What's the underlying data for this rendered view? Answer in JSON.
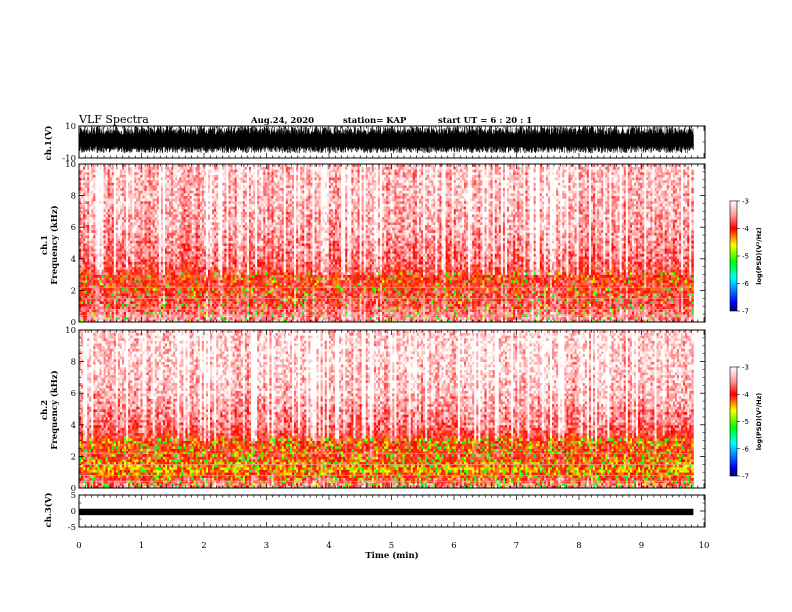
{
  "header": {
    "title": "VLF Spectra",
    "date": "Aug.24, 2020",
    "station": "station= KAP",
    "start": "start  UT =   6  : 20 : 1"
  },
  "chart_data": [
    {
      "type": "line",
      "panel": "ch1-waveform",
      "ylabel": "ch.1(V)",
      "ylim": [
        -10,
        10
      ],
      "yticks": [
        "10",
        "-10"
      ],
      "xlim": [
        0,
        10
      ],
      "x_end": 9.83,
      "envelope_upper_approx": 10,
      "envelope_lower_approx": -7,
      "color": "#000000"
    },
    {
      "type": "heatmap",
      "panel": "ch1-spectrogram",
      "ylabel": "ch.1\nFrequency (kHz)",
      "ylim": [
        0,
        10
      ],
      "yticks": [
        "0",
        "2",
        "4",
        "6",
        "8",
        "10"
      ],
      "xlim": [
        0,
        10
      ],
      "x_end": 9.83,
      "colorbar": {
        "label": "log(PSD)(V²/Hz)",
        "range": [
          -7,
          -3
        ],
        "ticks": [
          "-3",
          "-4",
          "-5",
          "-6",
          "-7"
        ],
        "colors": [
          "#ffffff",
          "#ff0000",
          "#ffff00",
          "#00ff00",
          "#00ffff",
          "#0000ff",
          "#000080"
        ]
      },
      "intensity_profile": [
        {
          "freq_khz": 0.3,
          "log_psd": -3.6
        },
        {
          "freq_khz": 1.0,
          "log_psd": -3.9
        },
        {
          "freq_khz": 2.0,
          "log_psd": -4.0
        },
        {
          "freq_khz": 3.0,
          "log_psd": -4.1
        },
        {
          "freq_khz": 4.0,
          "log_psd": -3.8
        },
        {
          "freq_khz": 6.0,
          "log_psd": -3.6
        },
        {
          "freq_khz": 8.0,
          "log_psd": -3.5
        },
        {
          "freq_khz": 10.0,
          "log_psd": -3.5
        }
      ]
    },
    {
      "type": "heatmap",
      "panel": "ch2-spectrogram",
      "ylabel": "ch.2\nFrequency (kHz)",
      "ylim": [
        0,
        10
      ],
      "yticks": [
        "0",
        "2",
        "4",
        "6",
        "8",
        "10"
      ],
      "xlim": [
        0,
        10
      ],
      "x_end": 9.83,
      "colorbar": {
        "label": "log(PSD)(V²/Hz)",
        "range": [
          -7,
          -3
        ],
        "ticks": [
          "-3",
          "-4",
          "-5",
          "-6",
          "-7"
        ],
        "colors": [
          "#ffffff",
          "#ff0000",
          "#ffff00",
          "#00ff00",
          "#00ffff",
          "#0000ff",
          "#000080"
        ]
      },
      "intensity_profile": [
        {
          "freq_khz": 0.3,
          "log_psd": -3.7
        },
        {
          "freq_khz": 1.2,
          "log_psd": -4.5
        },
        {
          "freq_khz": 2.0,
          "log_psd": -4.1
        },
        {
          "freq_khz": 3.0,
          "log_psd": -4.2
        },
        {
          "freq_khz": 4.0,
          "log_psd": -3.8
        },
        {
          "freq_khz": 6.0,
          "log_psd": -3.5
        },
        {
          "freq_khz": 8.0,
          "log_psd": -3.4
        },
        {
          "freq_khz": 10.0,
          "log_psd": -3.4
        }
      ]
    },
    {
      "type": "line",
      "panel": "ch3-waveform",
      "ylabel": "ch.3(V)",
      "ylim": [
        -5,
        5
      ],
      "yticks": [
        "5",
        "0",
        "-5"
      ],
      "xlim": [
        0,
        10
      ],
      "x_end": 9.83,
      "envelope_upper_approx": 0.7,
      "envelope_lower_approx": -1.3,
      "color": "#000000"
    }
  ],
  "xaxis": {
    "label": "Time (min)",
    "ticks": [
      "0",
      "1",
      "2",
      "3",
      "4",
      "5",
      "6",
      "7",
      "8",
      "9",
      "10"
    ]
  }
}
